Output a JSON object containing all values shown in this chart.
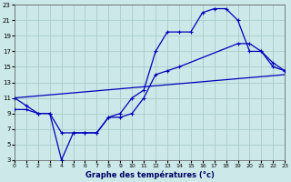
{
  "title": "Graphe des températures (°c)",
  "background_color": "#cce8e8",
  "grid_color": "#aacccc",
  "line_color": "#0000bb",
  "xlim": [
    0,
    23
  ],
  "ylim": [
    3,
    23
  ],
  "xticks": [
    0,
    1,
    2,
    3,
    4,
    5,
    6,
    7,
    8,
    9,
    10,
    11,
    12,
    13,
    14,
    15,
    16,
    17,
    18,
    19,
    20,
    21,
    22,
    23
  ],
  "yticks": [
    3,
    5,
    7,
    9,
    11,
    13,
    15,
    17,
    19,
    21,
    23
  ],
  "line1_x": [
    0,
    1,
    2,
    3,
    4,
    5,
    6,
    7,
    8,
    9,
    10,
    11,
    12,
    13,
    14,
    15,
    16,
    17,
    18,
    19,
    20,
    21,
    22,
    23
  ],
  "line1_y": [
    11,
    10,
    9,
    9,
    3,
    6.5,
    6.5,
    6.5,
    8.5,
    9,
    11,
    12,
    17,
    19.5,
    19.5,
    19.5,
    22,
    22.5,
    22.5,
    21,
    17,
    17,
    15,
    14.5
  ],
  "line2_x": [
    0,
    23
  ],
  "line2_y": [
    11,
    14
  ],
  "line3_x": [
    0,
    1,
    2,
    3,
    4,
    5,
    6,
    7,
    8,
    9,
    10,
    11,
    12,
    13,
    14,
    19,
    20,
    21,
    22,
    23
  ],
  "line3_y": [
    9.5,
    9.5,
    9,
    9,
    6.5,
    6.5,
    6.5,
    6.5,
    8.5,
    8.5,
    9,
    11,
    14,
    14.5,
    15,
    18,
    18,
    17,
    15.5,
    14.5
  ]
}
